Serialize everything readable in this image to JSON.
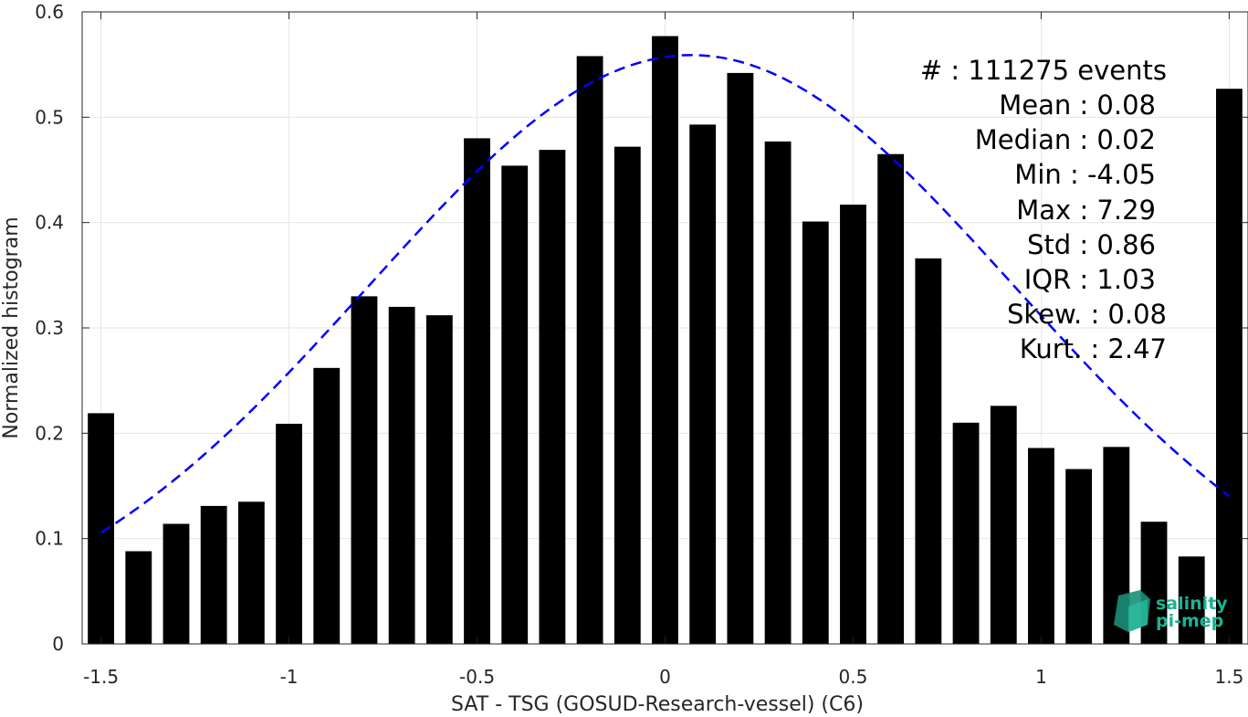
{
  "chart_data": {
    "type": "bar",
    "xlabel": "SAT - TSG (GOSUD-Research-vessel) (C6)",
    "ylabel": "Normalized histogram",
    "xlim": [
      -1.55,
      1.55
    ],
    "ylim": [
      0,
      0.6
    ],
    "grid": true,
    "bar_width": 0.07,
    "x_ticks": [
      -1.5,
      -1,
      -0.5,
      0,
      0.5,
      1,
      1.5
    ],
    "x_tick_labels": [
      "-1.5",
      "-1",
      "-0.5",
      "0",
      "0.5",
      "1",
      "1.5"
    ],
    "y_ticks": [
      0,
      0.1,
      0.2,
      0.3,
      0.4,
      0.5,
      0.6
    ],
    "y_tick_labels": [
      "0",
      "0.1",
      "0.2",
      "0.3",
      "0.4",
      "0.5",
      "0.6"
    ],
    "bars": {
      "x": [
        -1.5,
        -1.4,
        -1.3,
        -1.2,
        -1.1,
        -1.0,
        -0.9,
        -0.8,
        -0.7,
        -0.6,
        -0.5,
        -0.4,
        -0.3,
        -0.2,
        -0.1,
        0.0,
        0.1,
        0.2,
        0.3,
        0.4,
        0.5,
        0.6,
        0.7,
        0.8,
        0.9,
        1.0,
        1.1,
        1.2,
        1.3,
        1.4,
        1.5
      ],
      "values": [
        0.219,
        0.088,
        0.114,
        0.131,
        0.135,
        0.209,
        0.262,
        0.33,
        0.32,
        0.312,
        0.48,
        0.454,
        0.469,
        0.558,
        0.472,
        0.577,
        0.493,
        0.542,
        0.477,
        0.401,
        0.417,
        0.465,
        0.366,
        0.21,
        0.226,
        0.186,
        0.166,
        0.187,
        0.116,
        0.083,
        0.527
      ],
      "color": "#000000"
    },
    "fit_curve": {
      "style": "dashed",
      "color": "#0000ff",
      "mean": 0.07,
      "std": 0.86,
      "peak": 0.559,
      "x_range": [
        -1.5,
        1.5
      ]
    },
    "annotation": {
      "lines": [
        "#  : 111275 events",
        "Mean : 0.08",
        "Median : 0.02",
        "Min : -4.05",
        "Max : 7.29",
        "Std : 0.86",
        "IQR : 1.03",
        "Skew. : 0.08",
        "Kurt. : 2.47"
      ]
    }
  },
  "logo": {
    "line1": "salinity",
    "line2": "pi-mep",
    "color": "#1ab394"
  }
}
